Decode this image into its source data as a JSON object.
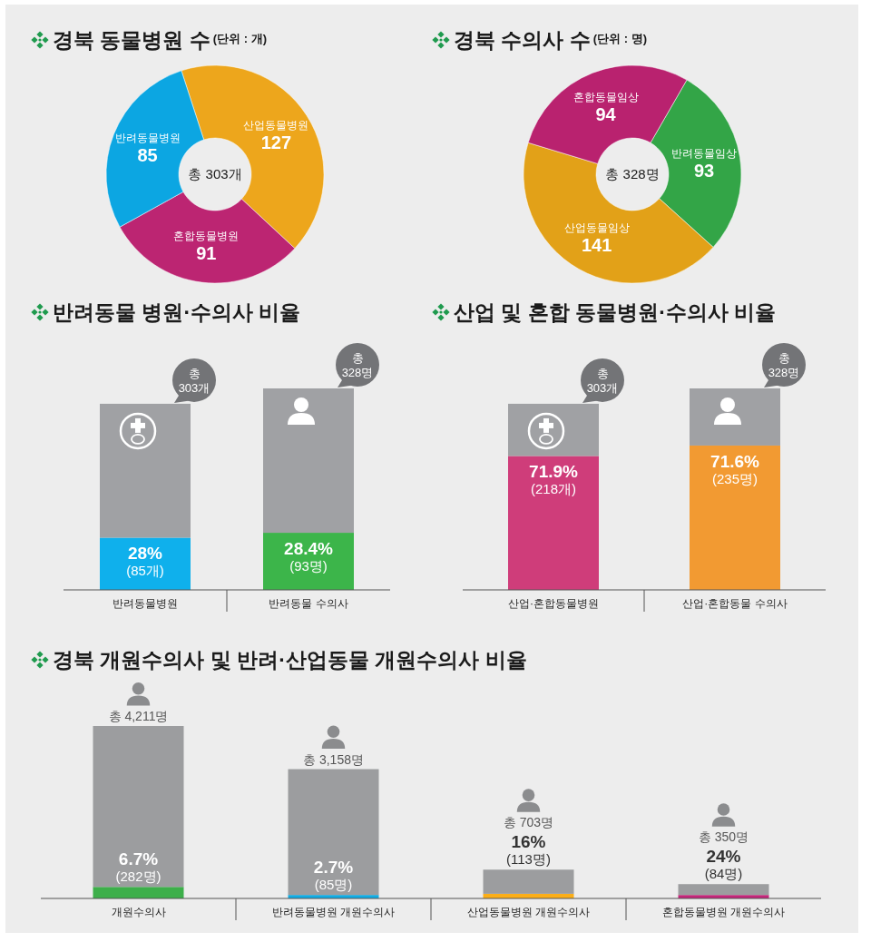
{
  "chart_data": [
    {
      "type": "donut",
      "title": "경북 동물병원 수",
      "subtitle": "(단위 : 개)",
      "categories": [
        "산업동물병원",
        "혼합동물병원",
        "반려동물병원"
      ],
      "values": [
        127,
        91,
        85
      ],
      "colors": [
        "#eda61c",
        "#bc2572",
        "#0ca6e2"
      ],
      "data_labels": true,
      "annotations": [
        "총 303개"
      ]
    },
    {
      "type": "donut",
      "title": "경북 수의사 수",
      "subtitle": "(단위 : 명)",
      "categories": [
        "반려동물임상",
        "산업동물임상",
        "혼합동물임상"
      ],
      "values": [
        93,
        141,
        94
      ],
      "colors": [
        "#33a547",
        "#e2a118",
        "#b9226f"
      ],
      "data_labels": true,
      "annotations": [
        "총 328명"
      ]
    },
    {
      "type": "bar",
      "title": "반려동물 병원·수의사 비율",
      "categories": [
        "반려동물병원",
        "반려동물 수의사"
      ],
      "stacked": true,
      "series": [
        {
          "colors": [
            "#0fb0ec",
            "#3cb54a"
          ],
          "values": [
            85,
            93
          ],
          "value_labels": [
            "28%\n(85개)",
            "28.4%\n(93명)"
          ]
        },
        {
          "color": "#a0a1a4",
          "values": [
            218,
            235
          ]
        }
      ],
      "totals": [
        "총\n303개",
        "총\n328명"
      ]
    },
    {
      "type": "bar",
      "title": "산업 및 혼합 동물병원·수의사 비율",
      "categories": [
        "산업·혼합동물병원",
        "산업·혼합동물 수의사"
      ],
      "stacked": true,
      "series": [
        {
          "colors": [
            "#cf3d7a",
            "#f29a32"
          ],
          "values": [
            218,
            235
          ],
          "value_labels": [
            "71.9%\n(218개)",
            "71.6%\n(235명)"
          ]
        },
        {
          "color": "#a0a1a4",
          "values": [
            85,
            93
          ]
        }
      ],
      "totals": [
        "총\n303개",
        "총\n328명"
      ]
    },
    {
      "type": "bar",
      "title": "경북 개원수의사 및 반려·산업동물 개원수의사 비율",
      "categories": [
        "개원수의사",
        "반려동물병원 개원수의사",
        "산업동물병원 개원수의사",
        "혼합동물병원 개원수의사"
      ],
      "stacked": true,
      "series": [
        {
          "colors": [
            "#3daf4a",
            "#10ace4",
            "#fbae17",
            "#c4257a"
          ],
          "values": [
            282,
            85,
            113,
            84
          ],
          "value_labels": [
            "6.7%\n(282명)",
            "2.7%\n(85명)",
            "16%\n(113명)",
            "24%\n(84명)"
          ]
        },
        {
          "color": "#9c9d9f",
          "values": [
            3929,
            3073,
            590,
            266
          ]
        }
      ],
      "totals": [
        "총 4,211명",
        "총 3,158명",
        "총 703명",
        "총 350명"
      ]
    }
  ]
}
